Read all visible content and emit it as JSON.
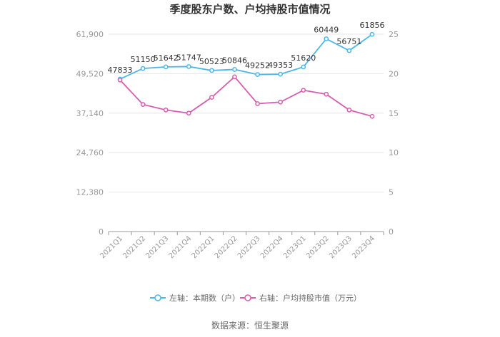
{
  "chart_data": {
    "type": "line",
    "title": "季度股东户数、户均持股市值情况",
    "categories": [
      "2021Q1",
      "2021Q2",
      "2021Q3",
      "2021Q4",
      "2022Q1",
      "2022Q2",
      "2022Q3",
      "2022Q4",
      "2023Q1",
      "2023Q2",
      "2023Q3",
      "2023Q4"
    ],
    "left_axis": {
      "ticks": [
        0,
        12380,
        24760,
        37140,
        49520,
        61900
      ],
      "tick_labels": [
        "0",
        "12,380",
        "24,760",
        "37,140",
        "49,520",
        "61,900"
      ],
      "ylim": [
        0,
        61900
      ]
    },
    "right_axis": {
      "ticks": [
        0,
        5,
        10,
        15,
        20,
        25
      ],
      "tick_labels": [
        "0",
        "5",
        "10",
        "15",
        "20",
        "25"
      ],
      "ylim": [
        0,
        25
      ]
    },
    "series": [
      {
        "name": "左轴：本期数（户）",
        "axis": "left",
        "color": "#4db6e8",
        "values": [
          47833,
          51150,
          51642,
          51747,
          50523,
          50846,
          49252,
          49353,
          51620,
          60449,
          56751,
          61856
        ],
        "labels": [
          "47833",
          "51150",
          "51642",
          "51747",
          "50523",
          "50846",
          "49252",
          "49353",
          "51620",
          "60449",
          "56751",
          "61856"
        ]
      },
      {
        "name": "右轴：户均持股市值（万元）",
        "axis": "right",
        "color": "#d45fb0",
        "values": [
          19.2,
          16.1,
          15.4,
          15.0,
          17.0,
          19.6,
          16.2,
          16.4,
          17.9,
          17.4,
          15.4,
          14.6
        ]
      }
    ],
    "grid": true,
    "legend_position": "bottom"
  },
  "source_text": "数据来源：恒生聚源"
}
